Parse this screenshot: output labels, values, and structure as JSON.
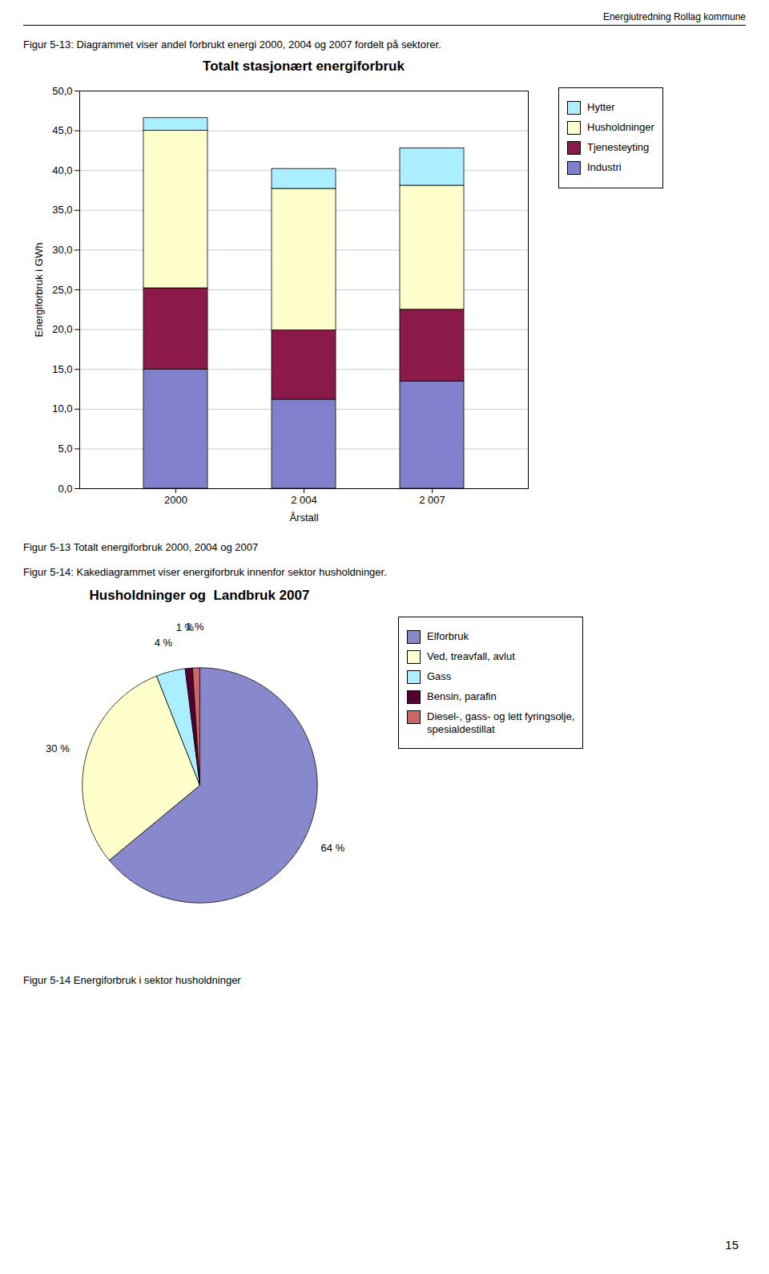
{
  "header": "Energiutredning Rollag kommune",
  "footer": "15",
  "chart_data": [
    {
      "type": "bar",
      "subtitle": "Figur 5-13: Diagrammet viser andel forbrukt energi 2000, 2004 og 2007 fordelt på sektorer.",
      "title": "Totalt stasjonært energiforbruk",
      "caption": "Figur 5-13 Totalt energiforbruk 2000, 2004 og 2007",
      "xlabel": "Årstall",
      "ylabel": "Energiforbruk i GWh",
      "categories": [
        "2000",
        "2 004",
        "2 007"
      ],
      "series": [
        {
          "name": "Industri",
          "color": "#8080cc",
          "values": [
            15.0,
            11.2,
            13.5
          ]
        },
        {
          "name": "Tjenesteyting",
          "color": "#8b1a4a",
          "values": [
            10.2,
            8.7,
            9.0
          ]
        },
        {
          "name": "Husholdninger",
          "color": "#ffffcc",
          "values": [
            19.8,
            17.8,
            15.6
          ]
        },
        {
          "name": "Hytter",
          "color": "#aaeeff",
          "values": [
            1.6,
            2.5,
            4.7
          ]
        }
      ],
      "stacked": true,
      "ylim": [
        0,
        50
      ],
      "yticks": [
        {
          "value": 0,
          "label": "0,0"
        },
        {
          "value": 5,
          "label": "5,0"
        },
        {
          "value": 10,
          "label": "10,0"
        },
        {
          "value": 15,
          "label": "15,0"
        },
        {
          "value": 20,
          "label": "20,0"
        },
        {
          "value": 25,
          "label": "25,0"
        },
        {
          "value": 30,
          "label": "30,0"
        },
        {
          "value": 35,
          "label": "35,0"
        },
        {
          "value": 40,
          "label": "40,0"
        },
        {
          "value": 45,
          "label": "45,0"
        },
        {
          "value": 50,
          "label": "50,0"
        }
      ],
      "grid": true,
      "legend": "right"
    },
    {
      "type": "pie",
      "subtitle": "Figur 5-14: Kakediagrammet viser energiforbruk innenfor sektor husholdninger.",
      "title": "Husholdninger og  Landbruk 2007",
      "caption": "Figur 5-14 Energiforbruk i sektor husholdninger",
      "categories": [
        "Elforbruk",
        "Ved, treavfall, avlut",
        "Gass",
        "Bensin, parafin",
        "Diesel-, gass- og lett fyringsolje,\nspesialdestillat"
      ],
      "values": [
        64,
        30,
        4,
        1,
        1
      ],
      "colors": [
        "#8888cc",
        "#ffffcc",
        "#aaeeff",
        "#550033",
        "#cc6666"
      ],
      "data_labels": true,
      "value_labels": [
        "64 %",
        "30 %",
        "4 %",
        "1 %",
        "1 %"
      ],
      "legend": "right"
    }
  ]
}
